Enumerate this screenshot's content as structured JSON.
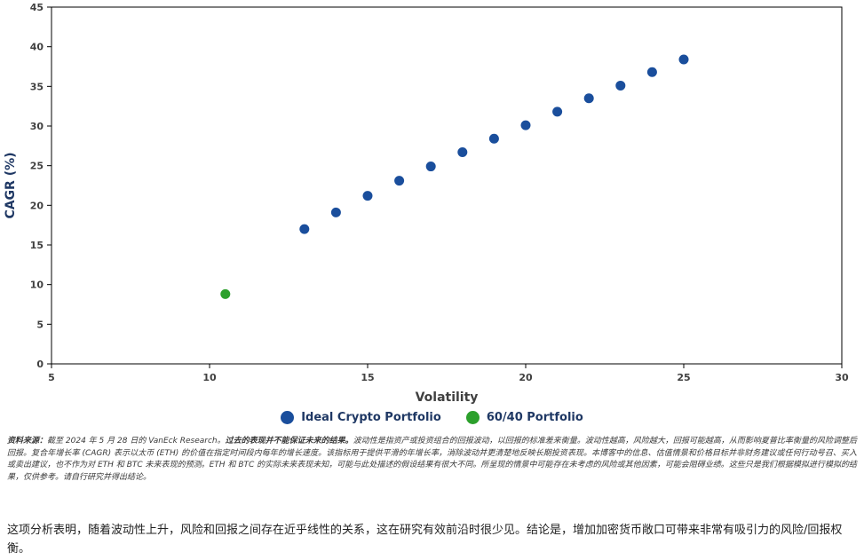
{
  "chart_data": {
    "type": "scatter",
    "title": "",
    "xlabel": "Volatility",
    "ylabel": "CAGR (%)",
    "xlabel_color": "#404040",
    "ylabel_color": "#1f3864",
    "xlim": [
      5,
      30
    ],
    "ylim": [
      0,
      45
    ],
    "xticks": [
      5,
      10,
      15,
      20,
      25,
      30
    ],
    "yticks": [
      0,
      5,
      10,
      15,
      20,
      25,
      30,
      35,
      40,
      45
    ],
    "grid": false,
    "legend_position": "bottom",
    "series": [
      {
        "name": "Ideal Crypto Portfolio",
        "color": "#1a4e9c",
        "points": [
          [
            13,
            17.0
          ],
          [
            14,
            19.1
          ],
          [
            15,
            21.2
          ],
          [
            16,
            23.1
          ],
          [
            17,
            24.9
          ],
          [
            18,
            26.7
          ],
          [
            19,
            28.4
          ],
          [
            20,
            30.1
          ],
          [
            21,
            31.8
          ],
          [
            22,
            33.5
          ],
          [
            23,
            35.1
          ],
          [
            24,
            36.8
          ],
          [
            25,
            38.4
          ]
        ]
      },
      {
        "name": "60/40 Portfolio",
        "color": "#2ca02c",
        "points": [
          [
            10.5,
            8.8
          ]
        ]
      }
    ]
  },
  "footnote": {
    "label": "资料来源：",
    "source": "截至 2024 年 5 月 28 日的 VanEck Research。",
    "warning": "过去的表现并不能保证未来的结果。",
    "body": "波动性是指资产或投资组合的回报波动，以回报的标准差来衡量。波动性越高，风险越大，回报可能越高，从而影响夏普比率衡量的风险调整后回报。复合年增长率 (CAGR) 表示以太币 (ETH) 的价值在指定时间段内每年的增长速度。该指标用于提供平滑的年增长率，消除波动并更清楚地反映长期投资表现。本博客中的信息、估值情景和价格目标并非财务建议或任何行动号召、买入或卖出建议，也不作为对 ETH 和 BTC 未来表现的预测。ETH 和 BTC 的实际未来表现未知，可能与此处描述的假设结果有很大不同。所呈现的情景中可能存在未考虑的风险或其他因素，可能会阻碍业绩。这些只是我们根据模拟进行模拟的结果，仅供参考。请自行研究并得出结论。"
  },
  "analysis": {
    "text": "这项分析表明，随着波动性上升，风险和回报之间存在近乎线性的关系，这在研究有效前沿时很少见。结论是，增加加密货币敞口可带来非常有吸引力的风险/回报权衡。"
  }
}
